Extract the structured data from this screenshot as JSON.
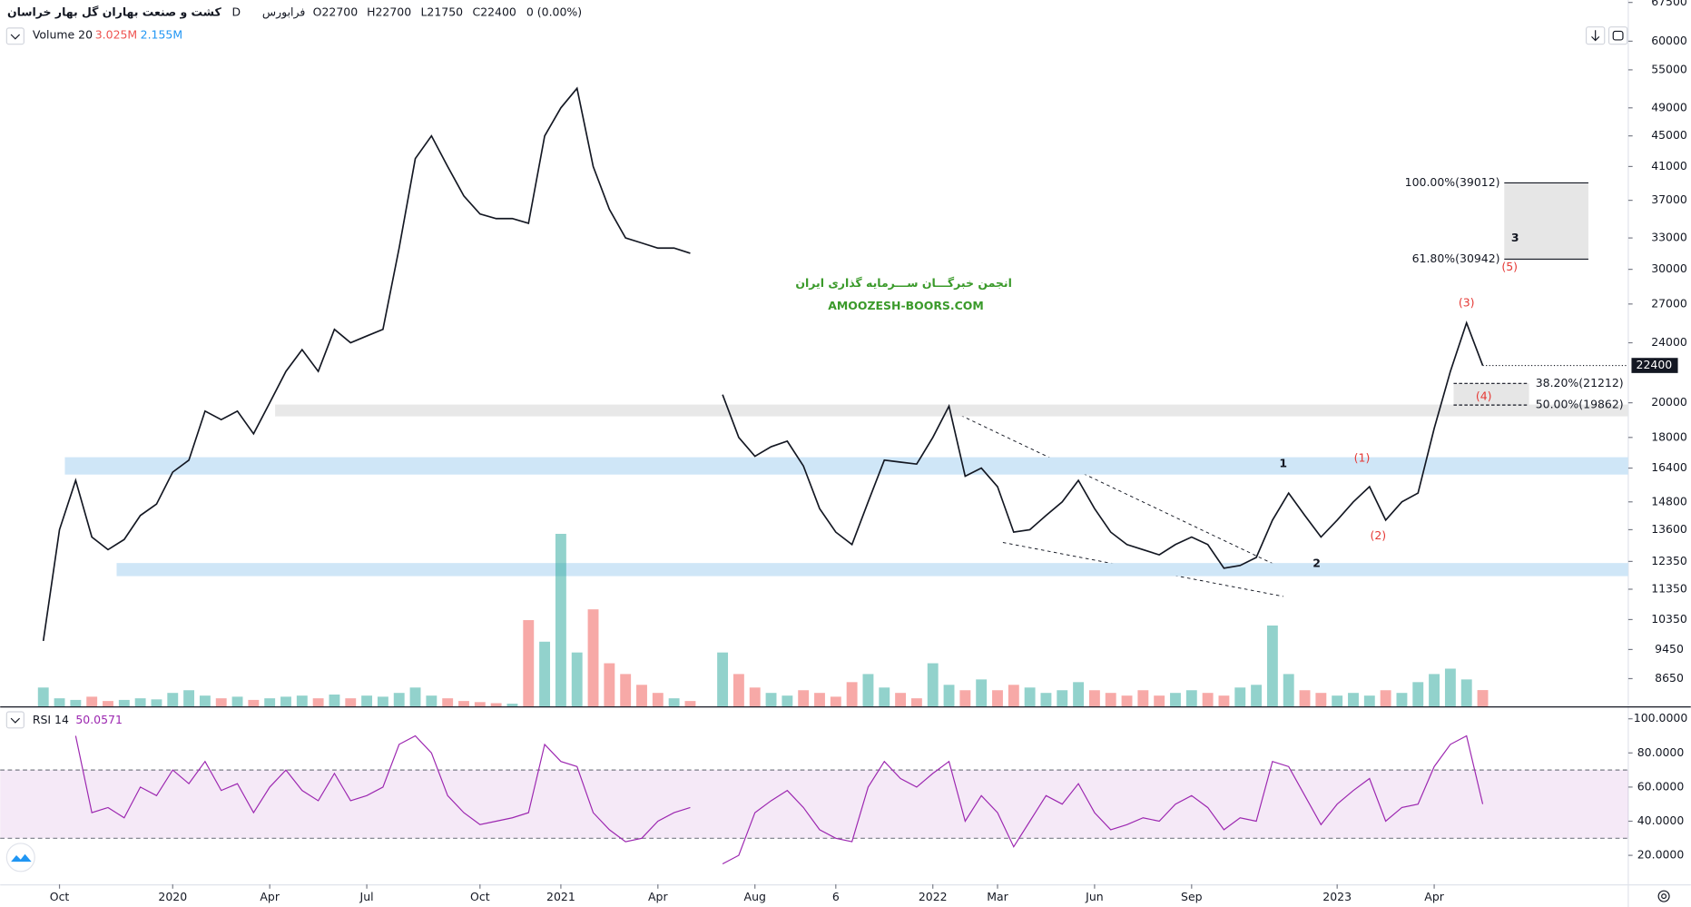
{
  "chart_data": [
    {
      "type": "line",
      "title": "کشت و صنعت بهاران گل بهار خراسان",
      "interval": "D",
      "exchange": "فرابورس",
      "ohlc": [
        "O22700",
        "H22700",
        "L21750",
        "C22400",
        "0 (0.00%)"
      ],
      "categories": [
        null,
        "Oct",
        null,
        null,
        null,
        null,
        null,
        null,
        "2020",
        null,
        null,
        null,
        null,
        null,
        "Apr",
        null,
        null,
        null,
        null,
        null,
        "Jul",
        null,
        null,
        null,
        null,
        null,
        null,
        "Oct",
        null,
        null,
        null,
        null,
        "2021",
        null,
        null,
        null,
        null,
        null,
        "Apr",
        null,
        null,
        null,
        null,
        null,
        "Aug",
        null,
        null,
        null,
        null,
        "6",
        null,
        null,
        null,
        null,
        null,
        "2022",
        null,
        null,
        null,
        "Mar",
        null,
        null,
        null,
        null,
        null,
        "Jun",
        null,
        null,
        null,
        null,
        null,
        "Sep",
        null,
        null,
        null,
        null,
        null,
        null,
        null,
        null,
        "2023",
        null,
        null,
        null,
        null,
        null,
        "Apr",
        null,
        null,
        null
      ],
      "color": "#131722",
      "values": [
        9700,
        13600,
        15800,
        13300,
        12800,
        13200,
        14200,
        14700,
        16200,
        16800,
        19500,
        19000,
        19500,
        18200,
        20000,
        22000,
        23500,
        22000,
        25000,
        24000,
        24500,
        25000,
        32000,
        42000,
        45000,
        41000,
        37500,
        35500,
        35000,
        35000,
        34500,
        45000,
        49000,
        52000,
        41000,
        36000,
        33000,
        32500,
        32000,
        32000,
        31500,
        null,
        20500,
        18000,
        17000,
        17500,
        17800,
        16500,
        14500,
        13500,
        13000,
        14800,
        16800,
        16700,
        16600,
        18000,
        19800,
        16000,
        16400,
        15500,
        13500,
        13600,
        14200,
        14800,
        15800,
        14500,
        13500,
        13000,
        12800,
        12600,
        13000,
        13300,
        13000,
        12100,
        12200,
        12500,
        14000,
        15200,
        14200,
        13300,
        14000,
        14800,
        15500,
        14000,
        14800,
        15200,
        18500,
        22000,
        25500,
        22400
      ],
      "yscale": "log",
      "ylim": [
        7950,
        68000
      ],
      "yticks": [
        8650,
        9450,
        10350,
        11350,
        12350,
        13600,
        14800,
        16400,
        18000,
        20000,
        24000,
        27000,
        30000,
        33000,
        37000,
        41000,
        45000,
        49000,
        55000,
        60000,
        67500
      ],
      "last_price": 22400,
      "volume": {
        "name": "Volume 20",
        "readings": [
          "3.025M",
          "2.155M"
        ],
        "reading_colors": [
          "#ef5350",
          "#2196f3"
        ],
        "values": [
          3.5,
          1.5,
          1.2,
          1.8,
          1.0,
          1.2,
          1.5,
          1.3,
          2.5,
          3.0,
          2.0,
          1.5,
          1.8,
          1.2,
          1.5,
          1.8,
          2.0,
          1.5,
          2.2,
          1.5,
          2.0,
          1.8,
          2.5,
          3.5,
          2.0,
          1.5,
          1.0,
          0.8,
          0.6,
          0.5,
          16,
          12,
          32,
          10,
          18,
          8,
          6,
          4,
          2.5,
          1.5,
          1.0,
          null,
          10,
          6,
          3.5,
          2.5,
          2.0,
          3.0,
          2.5,
          1.8,
          4.5,
          6.0,
          3.5,
          2.5,
          1.5,
          8.0,
          4.0,
          3.0,
          5.0,
          3.0,
          4.0,
          3.5,
          2.5,
          3.0,
          4.5,
          3.0,
          2.5,
          2.0,
          3.0,
          2.0,
          2.5,
          3.0,
          2.5,
          2.0,
          3.5,
          4.0,
          15.0,
          6.0,
          3.0,
          2.5,
          2.0,
          2.5,
          2.0,
          3.0,
          2.5,
          4.5,
          6.0,
          7.0,
          5.0,
          3.025
        ],
        "up_color": "rgba(38,166,154,0.5)",
        "down_color": "rgba(239,83,80,0.5)"
      },
      "zones": [
        {
          "low": 16080,
          "high": 16950,
          "color": "#cfe6f7"
        },
        {
          "low": 11810,
          "high": 12290,
          "color": "#cfe6f7"
        },
        {
          "low": 19190,
          "high": 19890,
          "color": "#e8e8e8"
        }
      ],
      "fib": [
        {
          "value": 39012,
          "label": "100.00%(39012)"
        },
        {
          "value": 30942,
          "label": "61.80%(30942)"
        },
        {
          "value": 21212,
          "label": "38.20%(21212)"
        },
        {
          "value": 19862,
          "label": "50.00%(19862)"
        }
      ],
      "waves": [
        "1",
        "2",
        "3",
        "(1)",
        "(2)",
        "(3)",
        "(4)",
        "(5)"
      ],
      "watermark": [
        "انجمن خبرگـــان ســـرمایه گذاری ایران",
        "AMOOZESH-BOORS.COM"
      ]
    },
    {
      "type": "line",
      "title": "RSI 14",
      "reading": 50.0571,
      "color": "#9c27b0",
      "values": [
        null,
        null,
        90,
        45,
        48,
        42,
        60,
        55,
        70,
        62,
        75,
        58,
        62,
        45,
        60,
        70,
        58,
        52,
        68,
        52,
        55,
        60,
        85,
        90,
        80,
        55,
        45,
        38,
        40,
        42,
        45,
        85,
        75,
        72,
        45,
        35,
        28,
        30,
        40,
        45,
        48,
        null,
        15,
        20,
        45,
        52,
        58,
        48,
        35,
        30,
        28,
        60,
        75,
        65,
        60,
        68,
        75,
        40,
        55,
        45,
        25,
        40,
        55,
        50,
        62,
        45,
        35,
        38,
        42,
        40,
        50,
        55,
        48,
        35,
        42,
        40,
        75,
        72,
        55,
        38,
        50,
        58,
        65,
        40,
        48,
        50,
        72,
        85,
        90,
        50.0571
      ],
      "ylim": [
        3,
        106
      ],
      "yticks": [
        {
          "value": 20,
          "label": "20.0000"
        },
        {
          "value": 40,
          "label": "40.0000"
        },
        {
          "value": 60,
          "label": "60.0000"
        },
        {
          "value": 80,
          "label": "80.0000"
        },
        {
          "value": 100,
          "label": "100.0000"
        }
      ],
      "band": [
        30,
        70
      ],
      "band_color": "rgba(156,39,176,0.1)"
    }
  ]
}
